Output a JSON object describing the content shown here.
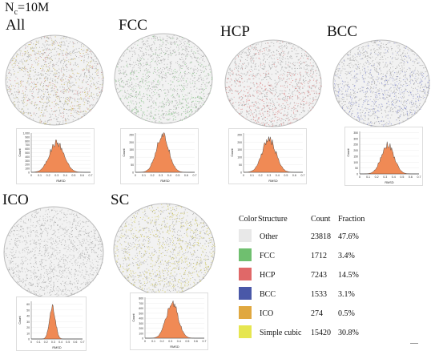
{
  "page_title": {
    "prefix": "N",
    "sub": "c",
    "suffix": "=10M"
  },
  "panels": [
    {
      "label": "All",
      "colors": [
        "#bdb86a",
        "#c9b050",
        "#d98f8f",
        "#aaa"
      ]
    },
    {
      "label": "FCC",
      "colors": [
        "#7fbf7f",
        "#a5cfa5"
      ]
    },
    {
      "label": "HCP",
      "colors": [
        "#d98080",
        "#e0a0a0"
      ]
    },
    {
      "label": "BCC",
      "colors": [
        "#7f86c9",
        "#a3a8d8"
      ]
    },
    {
      "label": "ICO",
      "colors": [
        "#c8c8c8"
      ]
    },
    {
      "label": "SC",
      "colors": [
        "#c9c25a",
        "#d8d27a"
      ]
    }
  ],
  "legend": {
    "headers": [
      "Color",
      "Structure",
      "Count",
      "Fraction"
    ],
    "rows": [
      {
        "color": "#e8e8e8",
        "structure": "Other",
        "count": "23818",
        "fraction": "47.6%"
      },
      {
        "color": "#6fbf6f",
        "structure": "FCC",
        "count": "1712",
        "fraction": "3.4%"
      },
      {
        "color": "#e06868",
        "structure": "HCP",
        "count": "7243",
        "fraction": "14.5%"
      },
      {
        "color": "#4a58a8",
        "structure": "BCC",
        "count": "1533",
        "fraction": "3.1%"
      },
      {
        "color": "#e0a840",
        "structure": "ICO",
        "count": "274",
        "fraction": "0.5%"
      },
      {
        "color": "#e6e650",
        "structure": "Simple cubic",
        "count": "15420",
        "fraction": "30.8%"
      }
    ]
  },
  "chart_data": [
    {
      "type": "bar",
      "panel": "All",
      "xlabel": "RMSD",
      "ylabel": "Count",
      "xlim": [
        0,
        0.7
      ],
      "xticks": [
        "0",
        "0.1",
        "0.2",
        "0.3",
        "0.4",
        "0.5",
        "0.6",
        "0.7"
      ],
      "yticks": [
        "0",
        "100",
        "200",
        "300",
        "400",
        "500",
        "600",
        "700",
        "800",
        "900",
        "1,000"
      ],
      "ylim": [
        0,
        1000
      ],
      "peak_x": 0.3,
      "peak_y": 760,
      "width": 0.085
    },
    {
      "type": "bar",
      "panel": "FCC",
      "xlabel": "RMSD",
      "ylabel": "Count",
      "xlim": [
        0,
        0.7
      ],
      "xticks": [
        "0",
        "0.1",
        "0.2",
        "0.3",
        "0.4",
        "0.5",
        "0.6",
        "0.7"
      ],
      "yticks": [
        "0",
        "50",
        "100",
        "150",
        "200",
        "250"
      ],
      "ylim": [
        0,
        260
      ],
      "peak_x": 0.32,
      "peak_y": 245,
      "width": 0.075
    },
    {
      "type": "bar",
      "panel": "HCP",
      "xlabel": "RMSD",
      "ylabel": "Count",
      "xlim": [
        0,
        0.7
      ],
      "xticks": [
        "0",
        "0.1",
        "0.2",
        "0.3",
        "0.4",
        "0.5",
        "0.6",
        "0.7"
      ],
      "yticks": [
        "0",
        "50",
        "100",
        "150",
        "200",
        "250"
      ],
      "ylim": [
        0,
        260
      ],
      "peak_x": 0.3,
      "peak_y": 220,
      "width": 0.08
    },
    {
      "type": "bar",
      "panel": "BCC",
      "xlabel": "RMSD",
      "ylabel": "Count",
      "xlim": [
        0,
        0.7
      ],
      "xticks": [
        "0",
        "0.1",
        "0.2",
        "0.3",
        "0.4",
        "0.5",
        "0.6",
        "0.7"
      ],
      "yticks": [
        "0",
        "50",
        "100",
        "150",
        "200",
        "250",
        "300",
        "350"
      ],
      "ylim": [
        0,
        360
      ],
      "peak_x": 0.33,
      "peak_y": 250,
      "width": 0.075
    },
    {
      "type": "bar",
      "panel": "ICO",
      "xlabel": "RMSD",
      "ylabel": "Count",
      "xlim": [
        0,
        0.7
      ],
      "xticks": [
        "0",
        "0.1",
        "0.2",
        "0.3",
        "0.4",
        "0.5",
        "0.6",
        "0.7"
      ],
      "yticks": [
        "0",
        "10",
        "20",
        "30",
        "40",
        "50",
        "60"
      ],
      "ylim": [
        0,
        65
      ],
      "peak_x": 0.29,
      "peak_y": 55,
      "width": 0.04
    },
    {
      "type": "bar",
      "panel": "SC",
      "xlabel": "RMSD",
      "ylabel": "Count",
      "xlim": [
        0,
        0.7
      ],
      "xticks": [
        "0",
        "0.1",
        "0.2",
        "0.3",
        "0.4",
        "0.5",
        "0.6",
        "0.7"
      ],
      "yticks": [
        "0",
        "100",
        "200",
        "300",
        "400",
        "500",
        "600",
        "700",
        "800"
      ],
      "ylim": [
        0,
        820
      ],
      "peak_x": 0.32,
      "peak_y": 720,
      "width": 0.07
    }
  ]
}
